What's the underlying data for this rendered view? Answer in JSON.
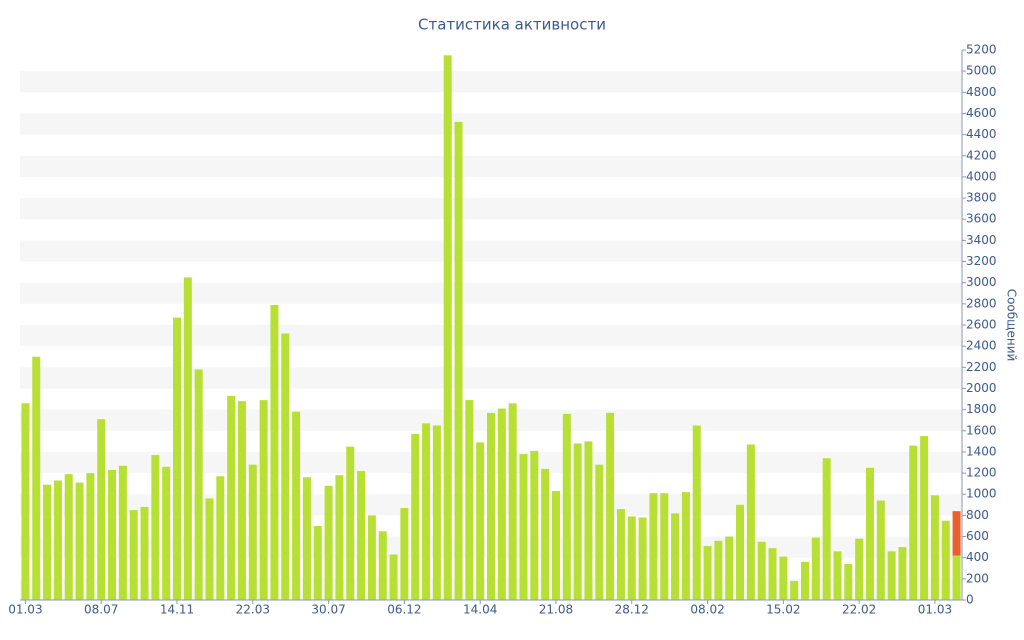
{
  "chart_data": {
    "type": "bar",
    "title": "Статистика активности",
    "y_label": "Сообщений",
    "stacked": true,
    "grid": true,
    "y_axis_side": "right",
    "categories": [
      "01.03",
      null,
      null,
      null,
      null,
      null,
      null,
      "08.07",
      null,
      null,
      null,
      null,
      null,
      null,
      "14.11",
      null,
      null,
      null,
      null,
      null,
      null,
      "22.03",
      null,
      null,
      null,
      null,
      null,
      null,
      "30.07",
      null,
      null,
      null,
      null,
      null,
      null,
      "06.12",
      null,
      null,
      null,
      null,
      null,
      null,
      "14.04",
      null,
      null,
      null,
      null,
      null,
      null,
      "21.08",
      null,
      null,
      null,
      null,
      null,
      null,
      "28.12",
      null,
      null,
      null,
      null,
      null,
      null,
      "08.02",
      null,
      null,
      null,
      null,
      null,
      null,
      "15.02",
      null,
      null,
      null,
      null,
      null,
      null,
      "22.02",
      null,
      null,
      null,
      null,
      null,
      null,
      "01.03",
      null,
      null
    ],
    "series": [
      {
        "color": "#b8e034",
        "values": [
          1860,
          2300,
          1090,
          1130,
          1190,
          1110,
          1200,
          1710,
          1230,
          1270,
          850,
          880,
          1370,
          1260,
          2670,
          3050,
          2180,
          960,
          1170,
          1930,
          1880,
          1280,
          1890,
          2790,
          2520,
          1780,
          1160,
          700,
          1080,
          1180,
          1450,
          1220,
          800,
          650,
          430,
          870,
          1570,
          1670,
          1650,
          5150,
          4520,
          1890,
          1490,
          1770,
          1810,
          1860,
          1380,
          1410,
          1240,
          1030,
          1760,
          1480,
          1500,
          1280,
          1770,
          860,
          790,
          780,
          1010,
          1010,
          820,
          1020,
          1650,
          510,
          560,
          600,
          900,
          1470,
          550,
          490,
          410,
          180,
          360,
          590,
          1340,
          460,
          340,
          580,
          1250,
          940,
          460,
          500,
          1460,
          1550,
          990,
          750,
          420
        ]
      },
      {
        "color": "#e8612c",
        "values": [
          null,
          null,
          null,
          null,
          null,
          null,
          null,
          null,
          null,
          null,
          null,
          null,
          null,
          null,
          null,
          null,
          null,
          null,
          null,
          null,
          null,
          null,
          null,
          null,
          null,
          null,
          null,
          null,
          null,
          null,
          null,
          null,
          null,
          null,
          null,
          null,
          null,
          null,
          null,
          null,
          null,
          null,
          null,
          null,
          null,
          null,
          null,
          null,
          null,
          null,
          null,
          null,
          null,
          null,
          null,
          null,
          null,
          null,
          null,
          null,
          null,
          null,
          null,
          null,
          null,
          null,
          null,
          null,
          null,
          null,
          null,
          null,
          null,
          null,
          null,
          null,
          null,
          null,
          null,
          null,
          null,
          null,
          null,
          null,
          null,
          null,
          420
        ]
      }
    ],
    "ylim": [
      0,
      5200
    ],
    "yticks": [
      0,
      200,
      400,
      600,
      800,
      1000,
      1200,
      1400,
      1600,
      1800,
      2000,
      2200,
      2400,
      2600,
      2800,
      3000,
      3200,
      3400,
      3600,
      3800,
      4000,
      4200,
      4400,
      4600,
      4800,
      5000,
      5200
    ]
  }
}
